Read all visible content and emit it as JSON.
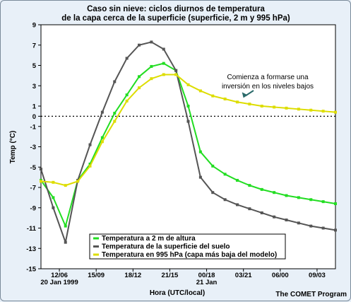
{
  "chart_data": {
    "type": "line",
    "title": "Caso sin nieve: ciclos diurnos de temperatura",
    "subtitle": "de la capa cerca de la superficie (superficie, 2 m y 995 hPa)",
    "ylabel": "Temp (°C)",
    "xlabel": "Hora (UTC/local)",
    "credit": "The COMET Program",
    "ylim": [
      -15,
      9
    ],
    "xlim": [
      0,
      24
    ],
    "y_ticks": [
      9,
      7,
      5,
      3,
      1,
      0,
      -1,
      -3,
      -5,
      -7,
      -9,
      -11,
      -13,
      -15
    ],
    "x_ticks": [
      {
        "x": 1.5,
        "label": "12/06",
        "sub": "20 Jan 1999"
      },
      {
        "x": 4.5,
        "label": "15/09",
        "sub": ""
      },
      {
        "x": 7.5,
        "label": "18/12",
        "sub": ""
      },
      {
        "x": 10.5,
        "label": "21/15",
        "sub": ""
      },
      {
        "x": 13.5,
        "label": "00/18",
        "sub": "21 Jan"
      },
      {
        "x": 16.5,
        "label": "03/21",
        "sub": ""
      },
      {
        "x": 19.5,
        "label": "06/00",
        "sub": ""
      },
      {
        "x": 22.5,
        "label": "09/03",
        "sub": ""
      }
    ],
    "zero_line": 0,
    "series": [
      {
        "name": "Temperatura a 2 m de altura",
        "color": "#22dd22",
        "x": [
          0,
          1,
          2,
          3,
          4,
          5,
          6,
          7,
          8,
          9,
          10,
          11,
          12,
          13,
          14,
          15,
          16,
          17,
          18,
          19,
          20,
          21,
          22,
          23,
          24
        ],
        "y": [
          -6.3,
          -8.0,
          -10.8,
          -6.3,
          -4.7,
          -2.1,
          0.3,
          2.1,
          3.9,
          4.9,
          5.2,
          4.5,
          1.0,
          -3.5,
          -4.9,
          -5.7,
          -6.3,
          -6.8,
          -7.2,
          -7.5,
          -7.8,
          -8.0,
          -8.2,
          -8.4,
          -8.6
        ]
      },
      {
        "name": "Temperatura de la superficie del suelo",
        "color": "#555555",
        "x": [
          0,
          1,
          2,
          3,
          4,
          5,
          6,
          7,
          8,
          9,
          10,
          11,
          12,
          13,
          14,
          15,
          16,
          17,
          18,
          19,
          20,
          21,
          22,
          23,
          24
        ],
        "y": [
          -5.2,
          -9.0,
          -12.4,
          -6.3,
          -2.8,
          0.4,
          3.4,
          5.7,
          7.0,
          7.3,
          6.6,
          4.5,
          -0.5,
          -6.0,
          -7.5,
          -8.2,
          -8.7,
          -9.1,
          -9.5,
          -9.9,
          -10.2,
          -10.5,
          -10.8,
          -11.0,
          -11.2
        ]
      },
      {
        "name": "Temperatura en 995 hPa (capa más baja del modelo)",
        "color": "#dddd00",
        "x": [
          0,
          1,
          2,
          3,
          4,
          5,
          6,
          7,
          8,
          9,
          10,
          11,
          12,
          13,
          14,
          15,
          16,
          17,
          18,
          19,
          20,
          21,
          22,
          23,
          24
        ],
        "y": [
          -6.4,
          -6.5,
          -6.8,
          -6.4,
          -4.9,
          -2.5,
          -0.5,
          1.5,
          2.8,
          3.7,
          4.1,
          4.1,
          3.1,
          2.5,
          2.0,
          1.7,
          1.4,
          1.2,
          1.0,
          0.9,
          0.8,
          0.7,
          0.6,
          0.5,
          0.4
        ]
      }
    ],
    "annotation": {
      "lines": [
        "Comienza a formarse una",
        "inversión en los niveles bajos"
      ],
      "points_to": {
        "x": 16.5,
        "y": 1.6
      }
    },
    "legend": "bottom-left"
  }
}
